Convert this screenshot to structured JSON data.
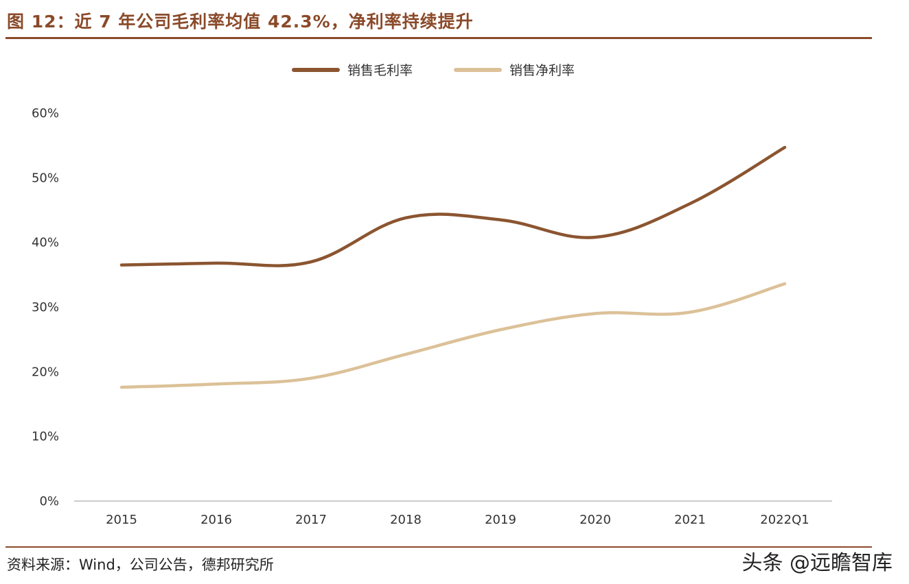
{
  "header": {
    "title": "图 12：近 7 年公司毛利率均值 42.3%，净利率持续提升"
  },
  "footer": {
    "source": "资料来源：Wind，公司公告，德邦研究所",
    "watermark": "头条 @远瞻智库"
  },
  "colors": {
    "accent": "#8a4a2a",
    "gross_margin": "#8b5530",
    "net_margin": "#dcc198",
    "axis": "#bbbbbb"
  },
  "chart_data": {
    "type": "line",
    "title": "",
    "xlabel": "",
    "ylabel": "",
    "categories": [
      "2015",
      "2016",
      "2017",
      "2018",
      "2019",
      "2020",
      "2021",
      "2022Q1"
    ],
    "ylim": [
      0,
      60
    ],
    "y_ticks": [
      "0%",
      "10%",
      "20%",
      "30%",
      "40%",
      "50%",
      "60%"
    ],
    "grid": false,
    "legend_position": "top-center",
    "smooth": true,
    "series": [
      {
        "name": "销售毛利率",
        "values": [
          36.5,
          36.8,
          37.0,
          43.8,
          43.5,
          40.8,
          46.0,
          54.7
        ]
      },
      {
        "name": "销售净利率",
        "values": [
          17.6,
          18.1,
          19.0,
          22.7,
          26.5,
          29.0,
          29.2,
          33.6
        ]
      }
    ]
  }
}
